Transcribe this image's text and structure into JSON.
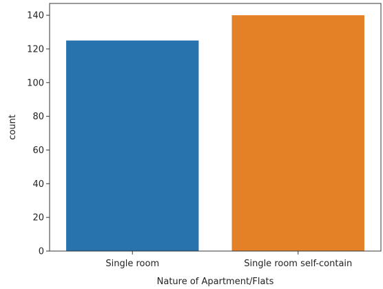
{
  "chart_data": {
    "type": "bar",
    "title": "",
    "xlabel": "Nature of Apartment/Flats",
    "ylabel": "count",
    "categories": [
      "Single room",
      "Single room self-contain"
    ],
    "values": [
      125,
      140
    ],
    "ylim": [
      0,
      147
    ],
    "yticks": [
      0,
      20,
      40,
      60,
      80,
      100,
      120,
      140
    ],
    "grid": false,
    "legend": "none",
    "colors": [
      "#2873ad",
      "#e48026"
    ]
  }
}
